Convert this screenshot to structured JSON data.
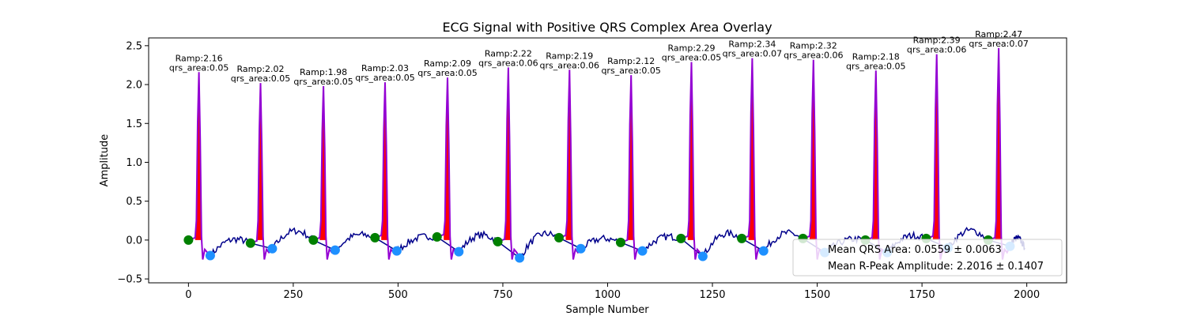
{
  "chart_data": {
    "type": "line",
    "title": "ECG Signal with Positive QRS Complex Area Overlay",
    "xlabel": "Sample Number",
    "ylabel": "Amplitude",
    "xlim": [
      -95,
      2095
    ],
    "ylim": [
      -0.55,
      2.6
    ],
    "x_ticks": [
      0,
      250,
      500,
      750,
      1000,
      1250,
      1500,
      1750,
      2000
    ],
    "y_ticks": [
      -0.5,
      0.0,
      0.5,
      1.0,
      1.5,
      2.0,
      2.5
    ],
    "x_tick_labels": [
      "0",
      "250",
      "500",
      "750",
      "1000",
      "1250",
      "1500",
      "1750",
      "2000"
    ],
    "y_tick_labels": [
      "−0.5",
      "0.0",
      "0.5",
      "1.0",
      "1.5",
      "2.0",
      "2.5"
    ],
    "grid": false,
    "colors": {
      "ecg": "#00008b",
      "qrs_segment": "#9400d3",
      "qrs_area_fill": "#ff0000",
      "onset_marker": "#008000",
      "offset_marker": "#1e90ff"
    },
    "beats": [
      {
        "r_x": 25,
        "onset": [
          0,
          0.0
        ],
        "offset": [
          52,
          -0.2
        ],
        "r_amp": 2.16,
        "label1": "Ramp:2.16",
        "label2": "qrs_area:0.05"
      },
      {
        "r_x": 172,
        "onset": [
          148,
          -0.04
        ],
        "offset": [
          200,
          -0.11
        ],
        "r_amp": 2.02,
        "label1": "Ramp:2.02",
        "label2": "qrs_area:0.05"
      },
      {
        "r_x": 322,
        "onset": [
          298,
          0.0
        ],
        "offset": [
          350,
          -0.13
        ],
        "r_amp": 1.98,
        "label1": "Ramp:1.98",
        "label2": "qrs_area:0.05"
      },
      {
        "r_x": 469,
        "onset": [
          445,
          0.03
        ],
        "offset": [
          497,
          -0.14
        ],
        "r_amp": 2.03,
        "label1": "Ramp:2.03",
        "label2": "qrs_area:0.05"
      },
      {
        "r_x": 618,
        "onset": [
          593,
          0.04
        ],
        "offset": [
          645,
          -0.15
        ],
        "r_amp": 2.09,
        "label1": "Ramp:2.09",
        "label2": "qrs_area:0.05"
      },
      {
        "r_x": 763,
        "onset": [
          738,
          -0.02
        ],
        "offset": [
          790,
          -0.23
        ],
        "r_amp": 2.22,
        "label1": "Ramp:2.22",
        "label2": "qrs_area:0.06"
      },
      {
        "r_x": 909,
        "onset": [
          884,
          0.03
        ],
        "offset": [
          936,
          -0.11
        ],
        "r_amp": 2.19,
        "label1": "Ramp:2.19",
        "label2": "qrs_area:0.06"
      },
      {
        "r_x": 1056,
        "onset": [
          1031,
          -0.03
        ],
        "offset": [
          1083,
          -0.14
        ],
        "r_amp": 2.12,
        "label1": "Ramp:2.12",
        "label2": "qrs_area:0.05"
      },
      {
        "r_x": 1200,
        "onset": [
          1175,
          0.02
        ],
        "offset": [
          1227,
          -0.21
        ],
        "r_amp": 2.29,
        "label1": "Ramp:2.29",
        "label2": "qrs_area:0.05"
      },
      {
        "r_x": 1345,
        "onset": [
          1320,
          0.02
        ],
        "offset": [
          1372,
          -0.14
        ],
        "r_amp": 2.34,
        "label1": "Ramp:2.34",
        "label2": "qrs_area:0.07"
      },
      {
        "r_x": 1491,
        "onset": [
          1466,
          0.02
        ],
        "offset": [
          1518,
          -0.16
        ],
        "r_amp": 2.32,
        "label1": "Ramp:2.32",
        "label2": "qrs_area:0.06"
      },
      {
        "r_x": 1640,
        "onset": [
          1615,
          0.0
        ],
        "offset": [
          1667,
          -0.16
        ],
        "r_amp": 2.18,
        "label1": "Ramp:2.18",
        "label2": "qrs_area:0.05"
      },
      {
        "r_x": 1785,
        "onset": [
          1760,
          0.02
        ],
        "offset": [
          1812,
          -0.1
        ],
        "r_amp": 2.39,
        "label1": "Ramp:2.39",
        "label2": "qrs_area:0.06"
      },
      {
        "r_x": 1933,
        "onset": [
          1908,
          0.0
        ],
        "offset": [
          1960,
          -0.08
        ],
        "r_amp": 2.47,
        "label1": "Ramp:2.47",
        "label2": "qrs_area:0.07"
      }
    ],
    "legend": {
      "position": "lower right",
      "entries": [
        "Mean QRS Area: 0.0559 ± 0.0063",
        "Mean R-Peak Amplitude: 2.2016 ± 0.1407"
      ]
    }
  }
}
